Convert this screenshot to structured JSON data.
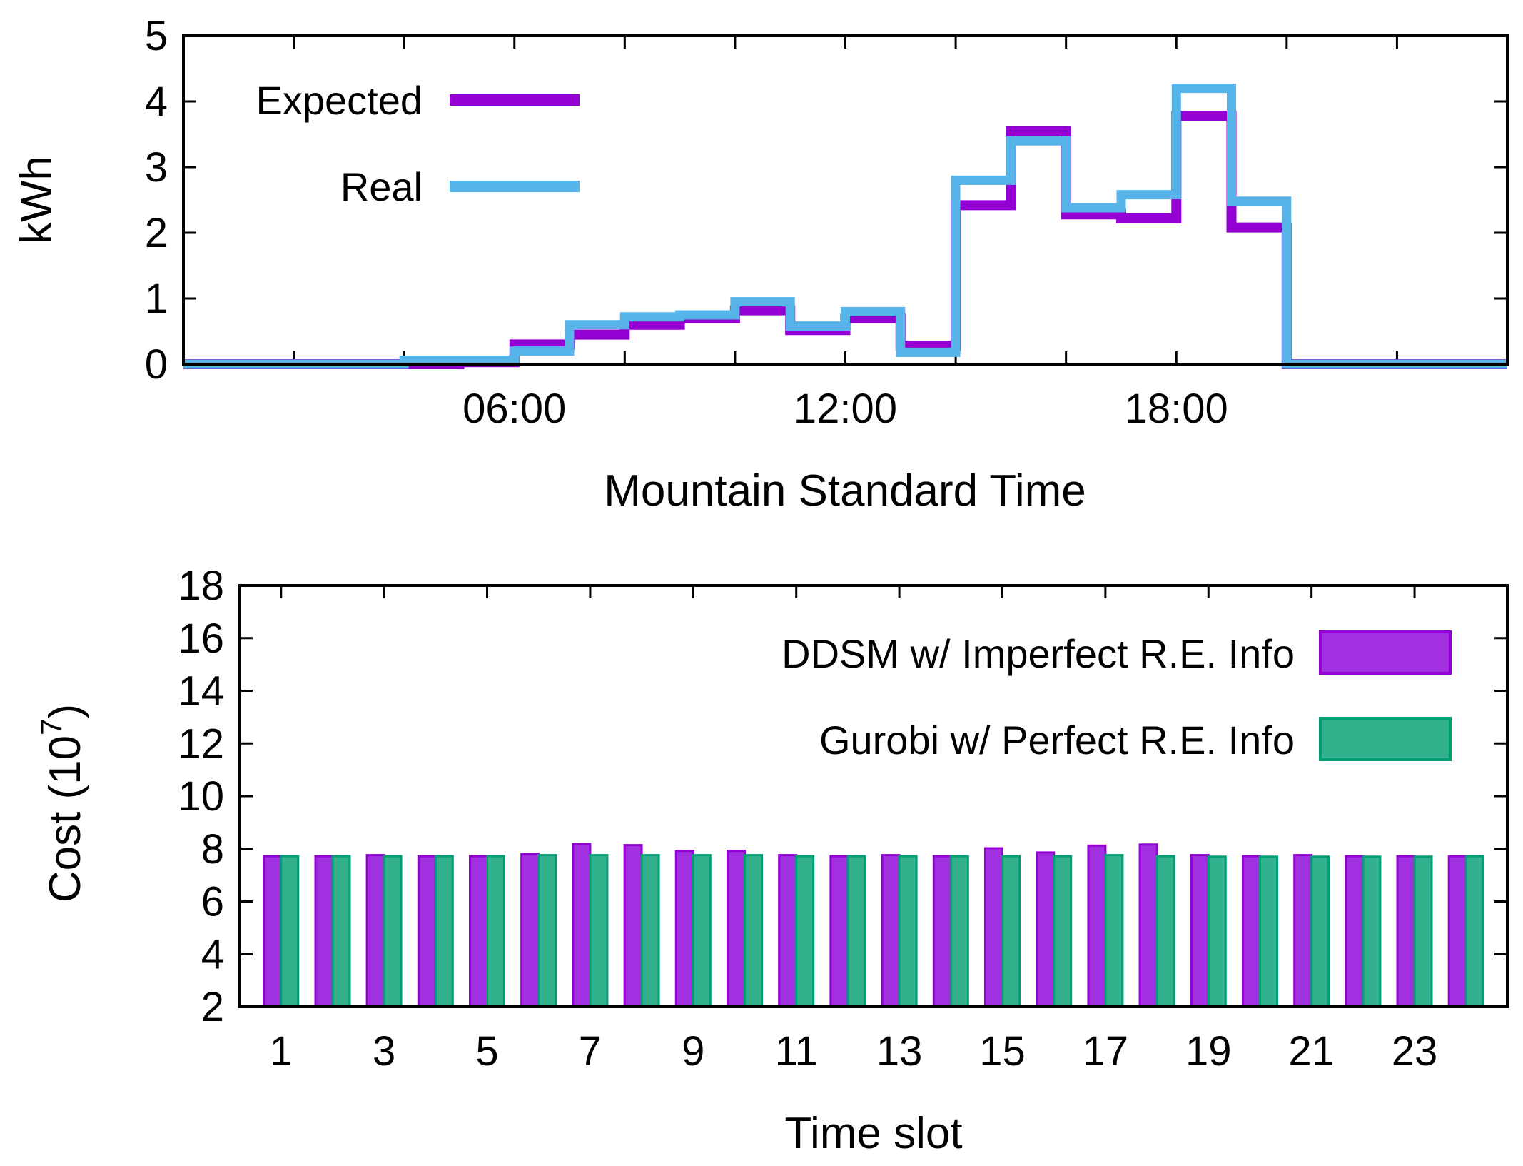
{
  "chart_data": [
    {
      "type": "line",
      "step": true,
      "title": "",
      "xlabel": "Mountain Standard Time",
      "ylabel": "kWh",
      "xlim": [
        0,
        24
      ],
      "ylim": [
        0,
        5
      ],
      "xticks": [
        {
          "value": 6,
          "label": "06:00"
        },
        {
          "value": 12,
          "label": "12:00"
        },
        {
          "value": 18,
          "label": "18:00"
        }
      ],
      "yticks": [
        0,
        1,
        2,
        3,
        4,
        5
      ],
      "legend_position": "top-left",
      "series": [
        {
          "name": "Expected",
          "color": "#9400d3",
          "x_start": 0,
          "x_step": 1,
          "values": [
            0,
            0,
            0,
            0,
            0,
            0.03,
            0.3,
            0.45,
            0.6,
            0.7,
            0.82,
            0.52,
            0.7,
            0.28,
            2.42,
            3.55,
            2.28,
            2.22,
            3.78,
            2.08,
            0,
            0,
            0,
            0
          ]
        },
        {
          "name": "Real",
          "color": "#56b4e9",
          "x_start": 0,
          "x_step": 1,
          "values": [
            0,
            0,
            0,
            0,
            0.06,
            0.06,
            0.2,
            0.6,
            0.72,
            0.75,
            0.95,
            0.58,
            0.8,
            0.18,
            2.8,
            3.4,
            2.38,
            2.58,
            4.2,
            2.48,
            0,
            0,
            0,
            0
          ]
        }
      ]
    },
    {
      "type": "bar",
      "title": "",
      "xlabel": "Time slot",
      "ylabel": "Cost (10",
      "ylabel_superscript": "7",
      "ylabel_close": ")",
      "ylim": [
        2,
        18
      ],
      "yticks": [
        2,
        4,
        6,
        8,
        10,
        12,
        14,
        16,
        18
      ],
      "categories": [
        1,
        2,
        3,
        4,
        5,
        6,
        7,
        8,
        9,
        10,
        11,
        12,
        13,
        14,
        15,
        16,
        17,
        18,
        19,
        20,
        21,
        22,
        23,
        24
      ],
      "xtick_labels": [
        "1",
        "3",
        "5",
        "7",
        "9",
        "11",
        "13",
        "15",
        "17",
        "19",
        "21",
        "23"
      ],
      "legend_position": "top-right",
      "series": [
        {
          "name": "DDSM w/ Imperfect R.E. Info",
          "color": "#a030e0",
          "stroke": "#9400d3",
          "values": [
            7.72,
            7.72,
            7.76,
            7.72,
            7.72,
            7.8,
            8.18,
            8.14,
            7.92,
            7.92,
            7.76,
            7.72,
            7.76,
            7.72,
            8.02,
            7.86,
            8.12,
            8.16,
            7.76,
            7.72,
            7.76,
            7.72,
            7.72,
            7.72
          ]
        },
        {
          "name": "Gurobi w/ Perfect R.E. Info",
          "color": "#33b08c",
          "stroke": "#009e73",
          "values": [
            7.72,
            7.72,
            7.72,
            7.72,
            7.72,
            7.76,
            7.76,
            7.76,
            7.76,
            7.76,
            7.72,
            7.72,
            7.72,
            7.72,
            7.72,
            7.72,
            7.76,
            7.72,
            7.7,
            7.7,
            7.7,
            7.7,
            7.7,
            7.72
          ]
        }
      ]
    }
  ]
}
